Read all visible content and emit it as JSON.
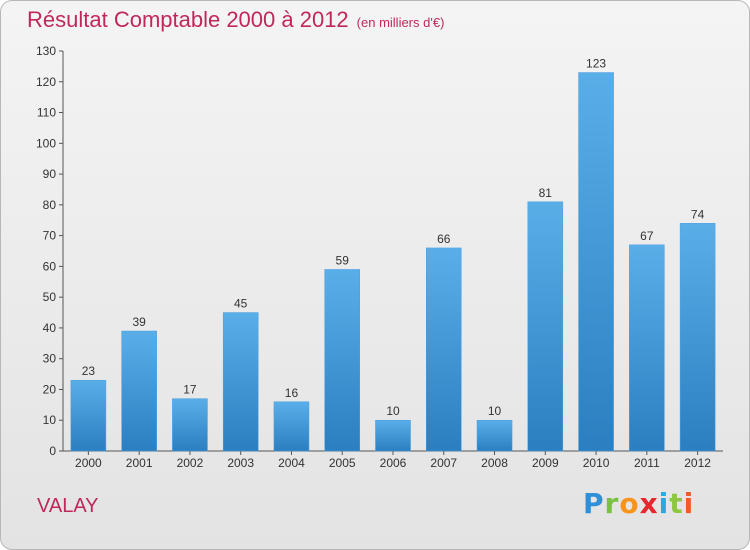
{
  "header": {
    "title": "Résultat Comptable 2000 à 2012",
    "subtitle": "(en milliers d'€)"
  },
  "footer": {
    "place": "VALAY",
    "logo_letters": [
      "P",
      "r",
      "o",
      "x",
      "i",
      "t",
      "i"
    ]
  },
  "colors": {
    "title": "#c0285b",
    "bar_top": "#5aaee8",
    "bar_bottom": "#2b7fc0"
  },
  "chart_data": {
    "type": "bar",
    "title": "Résultat Comptable 2000 à 2012",
    "subtitle": "(en milliers d'€)",
    "xlabel": "",
    "ylabel": "",
    "categories": [
      "2000",
      "2001",
      "2002",
      "2003",
      "2004",
      "2005",
      "2006",
      "2007",
      "2008",
      "2009",
      "2010",
      "2011",
      "2012"
    ],
    "values": [
      23,
      39,
      17,
      45,
      16,
      59,
      10,
      66,
      10,
      81,
      123,
      67,
      74
    ],
    "ylim": [
      0,
      130
    ],
    "yticks": [
      0,
      10,
      20,
      30,
      40,
      50,
      60,
      70,
      80,
      90,
      100,
      110,
      120,
      130
    ],
    "grid": false,
    "legend": "none"
  }
}
